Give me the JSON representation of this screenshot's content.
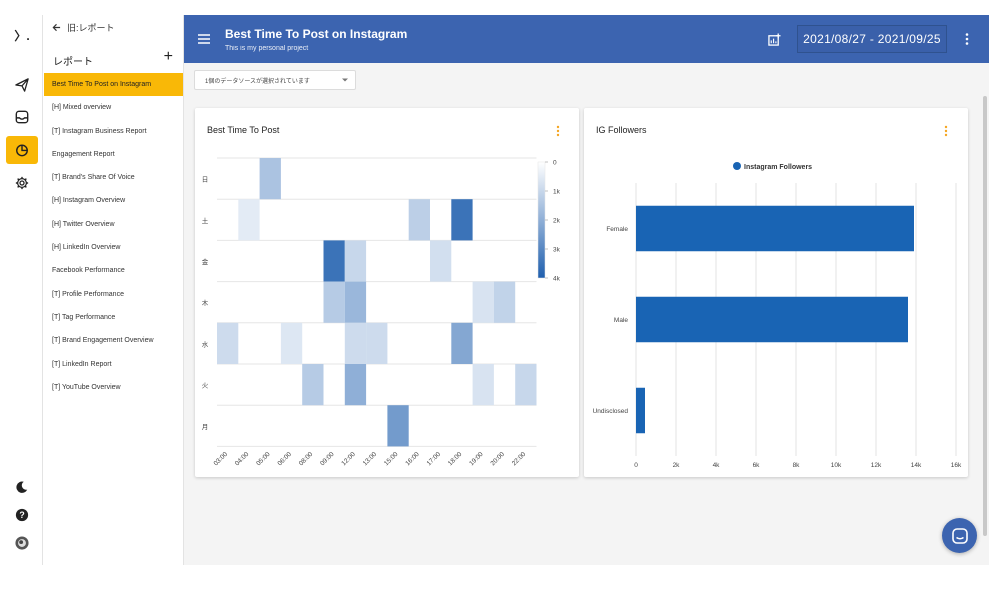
{
  "rail": {
    "logo_text": "〉.",
    "icons": [
      "send-icon",
      "inbox-icon",
      "report-icon",
      "settings-icon",
      "theme-icon",
      "help-icon",
      "avatar"
    ],
    "accent": "#f9b807"
  },
  "reports_panel": {
    "back_label": "旧:レポート",
    "title": "レポート",
    "add_label": "+",
    "items": [
      "Best Time To Post on Instagram",
      "[H] Mixed overview",
      "[T] Instagram Business Report",
      "Engagement Report",
      "[T] Brand's Share Of Voice",
      "[H] Instagram Overview",
      "[H] Twitter Overview",
      "[H] LinkedIn Overview",
      "Facebook Performance",
      "[T] Profile Performance",
      "[T] Tag Performance",
      "[T] Brand Engagement Overview",
      "[T] LinkedIn Report",
      "[T] YouTube Overview"
    ],
    "active_index": 0
  },
  "header": {
    "title": "Best Time To Post on Instagram",
    "subtitle": "This is my personal project",
    "date_range": "2021/08/27 - 2021/09/25",
    "background": "#3c64b0"
  },
  "datasource": {
    "label": "1個のデータソースが選択されています"
  },
  "chart_data": [
    {
      "type": "heatmap",
      "title": "Best Time To Post",
      "y_categories": [
        "日",
        "土",
        "金",
        "木",
        "水",
        "火",
        "月"
      ],
      "x_categories": [
        "03:00",
        "04:00",
        "05:00",
        "06:00",
        "08:00",
        "09:00",
        "12:00",
        "13:00",
        "15:00",
        "16:00",
        "17:00",
        "18:00",
        "19:00",
        "20:00",
        "22:00"
      ],
      "values": [
        [
          0,
          0,
          1500,
          0,
          0,
          0,
          0,
          0,
          0,
          0,
          0,
          0,
          0,
          0,
          0
        ],
        [
          0,
          500,
          0,
          0,
          0,
          0,
          0,
          0,
          0,
          1200,
          0,
          3500,
          0,
          0,
          0
        ],
        [
          0,
          0,
          0,
          0,
          0,
          3500,
          1000,
          0,
          0,
          0,
          800,
          0,
          0,
          0,
          0
        ],
        [
          0,
          0,
          0,
          0,
          0,
          1300,
          1800,
          0,
          0,
          0,
          0,
          0,
          700,
          1100,
          0
        ],
        [
          900,
          0,
          0,
          600,
          0,
          0,
          900,
          900,
          0,
          0,
          0,
          2200,
          0,
          0,
          0
        ],
        [
          0,
          0,
          0,
          0,
          1300,
          0,
          2000,
          0,
          0,
          0,
          0,
          0,
          700,
          0,
          1000
        ],
        [
          0,
          0,
          0,
          0,
          0,
          0,
          0,
          0,
          2500,
          0,
          0,
          0,
          0,
          0,
          0
        ]
      ],
      "scale_ticks": [
        "0",
        "1k",
        "2k",
        "3k",
        "4k"
      ],
      "scale_max": 4000,
      "color_high": "#1f5fae"
    },
    {
      "type": "bar",
      "orientation": "horizontal",
      "title": "IG Followers",
      "categories": [
        "Female",
        "Male",
        "Undisclosed"
      ],
      "series": [
        {
          "name": "Instagram Followers",
          "values": [
            13900,
            13600,
            450
          ]
        }
      ],
      "x_ticks": [
        "0",
        "2k",
        "4k",
        "6k",
        "8k",
        "10k",
        "12k",
        "14k",
        "16k"
      ],
      "xlim": [
        0,
        16000
      ],
      "legend_position": "top",
      "color": "#1964b4"
    }
  ]
}
